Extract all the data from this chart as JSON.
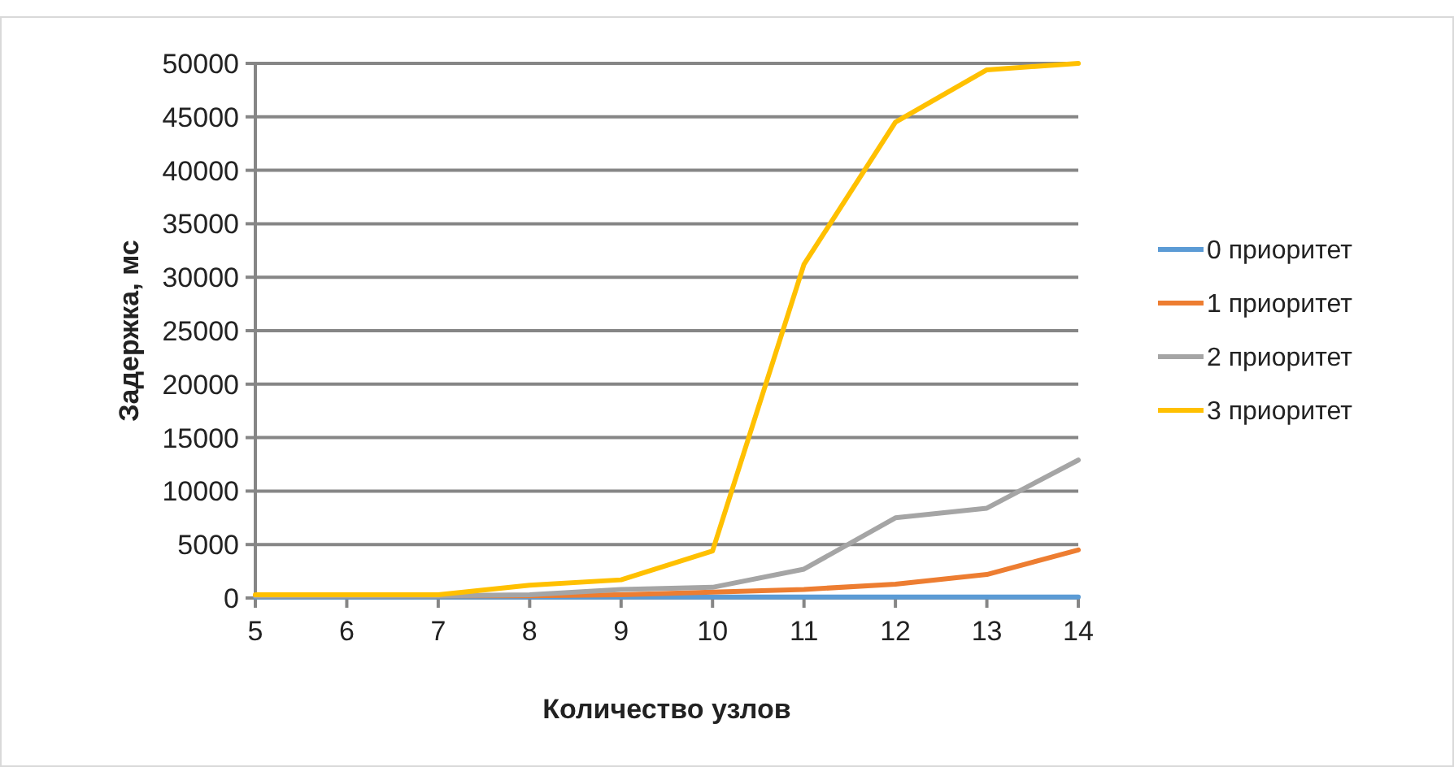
{
  "chart_data": {
    "type": "line",
    "xlabel": "Количество узлов",
    "ylabel": "Задержка, мс",
    "x": [
      5,
      6,
      7,
      8,
      9,
      10,
      11,
      12,
      13,
      14
    ],
    "xlim": [
      5,
      14
    ],
    "xticks": [
      5,
      6,
      7,
      8,
      9,
      10,
      11,
      12,
      13,
      14
    ],
    "ylim": [
      0,
      50000
    ],
    "yticks": [
      0,
      5000,
      10000,
      15000,
      20000,
      25000,
      30000,
      35000,
      40000,
      45000,
      50000
    ],
    "grid": "y",
    "legend": "right",
    "marker": "none",
    "line_style": "solid",
    "series": [
      {
        "name": "0 приоритет",
        "color": "#5b9bd5",
        "values": [
          100,
          100,
          100,
          100,
          100,
          100,
          100,
          100,
          100,
          100
        ]
      },
      {
        "name": "1 приоритет",
        "color": "#ed7d31",
        "values": [
          200,
          200,
          200,
          200,
          300,
          550,
          800,
          1300,
          2200,
          4500
        ]
      },
      {
        "name": "2 приоритет",
        "color": "#a5a5a5",
        "values": [
          200,
          200,
          200,
          300,
          800,
          1000,
          2700,
          7500,
          8400,
          12900
        ]
      },
      {
        "name": "3 приоритет",
        "color": "#ffc000",
        "values": [
          300,
          300,
          300,
          1200,
          1700,
          4400,
          31200,
          44500,
          49400,
          50000
        ]
      }
    ]
  }
}
